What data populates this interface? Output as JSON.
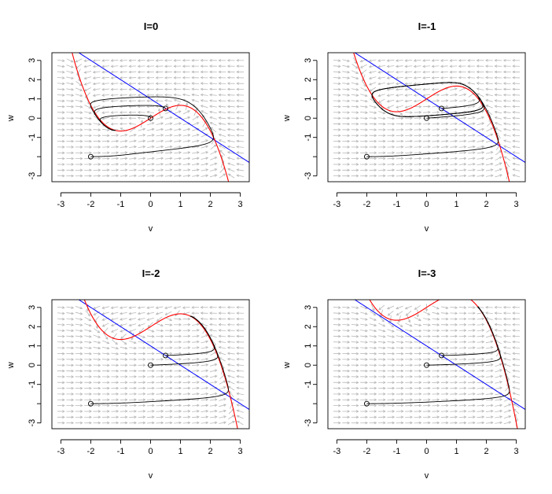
{
  "chart_data": [
    {
      "type": "line",
      "title": "I=0",
      "I": 0,
      "xlabel": "v",
      "ylabel": "w",
      "xlim": [
        -3.3,
        3.3
      ],
      "ylim": [
        -3.3,
        3.4
      ],
      "xticks": [
        "-3",
        "-2",
        "-1",
        "0",
        "1",
        "2",
        "3"
      ],
      "yticks": [
        "-3",
        "-1",
        "0",
        "1",
        "2",
        "3"
      ],
      "grid": false,
      "legend": "none",
      "series": [
        {
          "role": "v-nullcline (cubic)",
          "color": "#ff0000"
        },
        {
          "role": "w-nullcline (line)",
          "color": "#0000ff"
        },
        {
          "role": "vector field",
          "color": "#b8b8b8"
        },
        {
          "role": "trajectories",
          "color": "#000000"
        }
      ],
      "initial_points": [
        [
          -2,
          -2
        ],
        [
          0,
          0
        ],
        [
          0.5,
          0.5
        ]
      ]
    },
    {
      "type": "line",
      "title": "I=-1",
      "I": -1,
      "xlabel": "v",
      "ylabel": "w",
      "xlim": [
        -3.3,
        3.3
      ],
      "ylim": [
        -3.3,
        3.4
      ],
      "xticks": [
        "-3",
        "-2",
        "-1",
        "0",
        "1",
        "2",
        "3"
      ],
      "yticks": [
        "-3",
        "-1",
        "0",
        "1",
        "2",
        "3"
      ],
      "grid": false,
      "legend": "none",
      "series": [
        {
          "role": "v-nullcline (cubic)",
          "color": "#ff0000"
        },
        {
          "role": "w-nullcline (line)",
          "color": "#0000ff"
        },
        {
          "role": "vector field",
          "color": "#b8b8b8"
        },
        {
          "role": "trajectories",
          "color": "#000000"
        }
      ],
      "initial_points": [
        [
          -2,
          -2
        ],
        [
          0,
          0
        ],
        [
          0.5,
          0.5
        ]
      ]
    },
    {
      "type": "line",
      "title": "I=-2",
      "I": -2,
      "xlabel": "v",
      "ylabel": "w",
      "xlim": [
        -3.3,
        3.3
      ],
      "ylim": [
        -3.3,
        3.4
      ],
      "xticks": [
        "-3",
        "-2",
        "-1",
        "0",
        "1",
        "2",
        "3"
      ],
      "yticks": [
        "-3",
        "-1",
        "0",
        "1",
        "2",
        "3"
      ],
      "grid": false,
      "legend": "none",
      "series": [
        {
          "role": "v-nullcline (cubic)",
          "color": "#ff0000"
        },
        {
          "role": "w-nullcline (line)",
          "color": "#0000ff"
        },
        {
          "role": "vector field",
          "color": "#b8b8b8"
        },
        {
          "role": "trajectories",
          "color": "#000000"
        }
      ],
      "initial_points": [
        [
          -2,
          -2
        ],
        [
          0,
          0
        ],
        [
          0.5,
          0.5
        ]
      ]
    },
    {
      "type": "line",
      "title": "I=-3",
      "I": -3,
      "xlabel": "v",
      "ylabel": "w",
      "xlim": [
        -3.3,
        3.3
      ],
      "ylim": [
        -3.3,
        3.4
      ],
      "xticks": [
        "-3",
        "-2",
        "-1",
        "0",
        "1",
        "2",
        "3"
      ],
      "yticks": [
        "-3",
        "-1",
        "0",
        "1",
        "2",
        "3"
      ],
      "grid": false,
      "legend": "none",
      "series": [
        {
          "role": "v-nullcline (cubic)",
          "color": "#ff0000"
        },
        {
          "role": "w-nullcline (line)",
          "color": "#0000ff"
        },
        {
          "role": "vector field",
          "color": "#b8b8b8"
        },
        {
          "role": "trajectories",
          "color": "#000000"
        }
      ],
      "initial_points": [
        [
          -2,
          -2
        ],
        [
          0,
          0
        ],
        [
          0.5,
          0.5
        ]
      ]
    }
  ]
}
